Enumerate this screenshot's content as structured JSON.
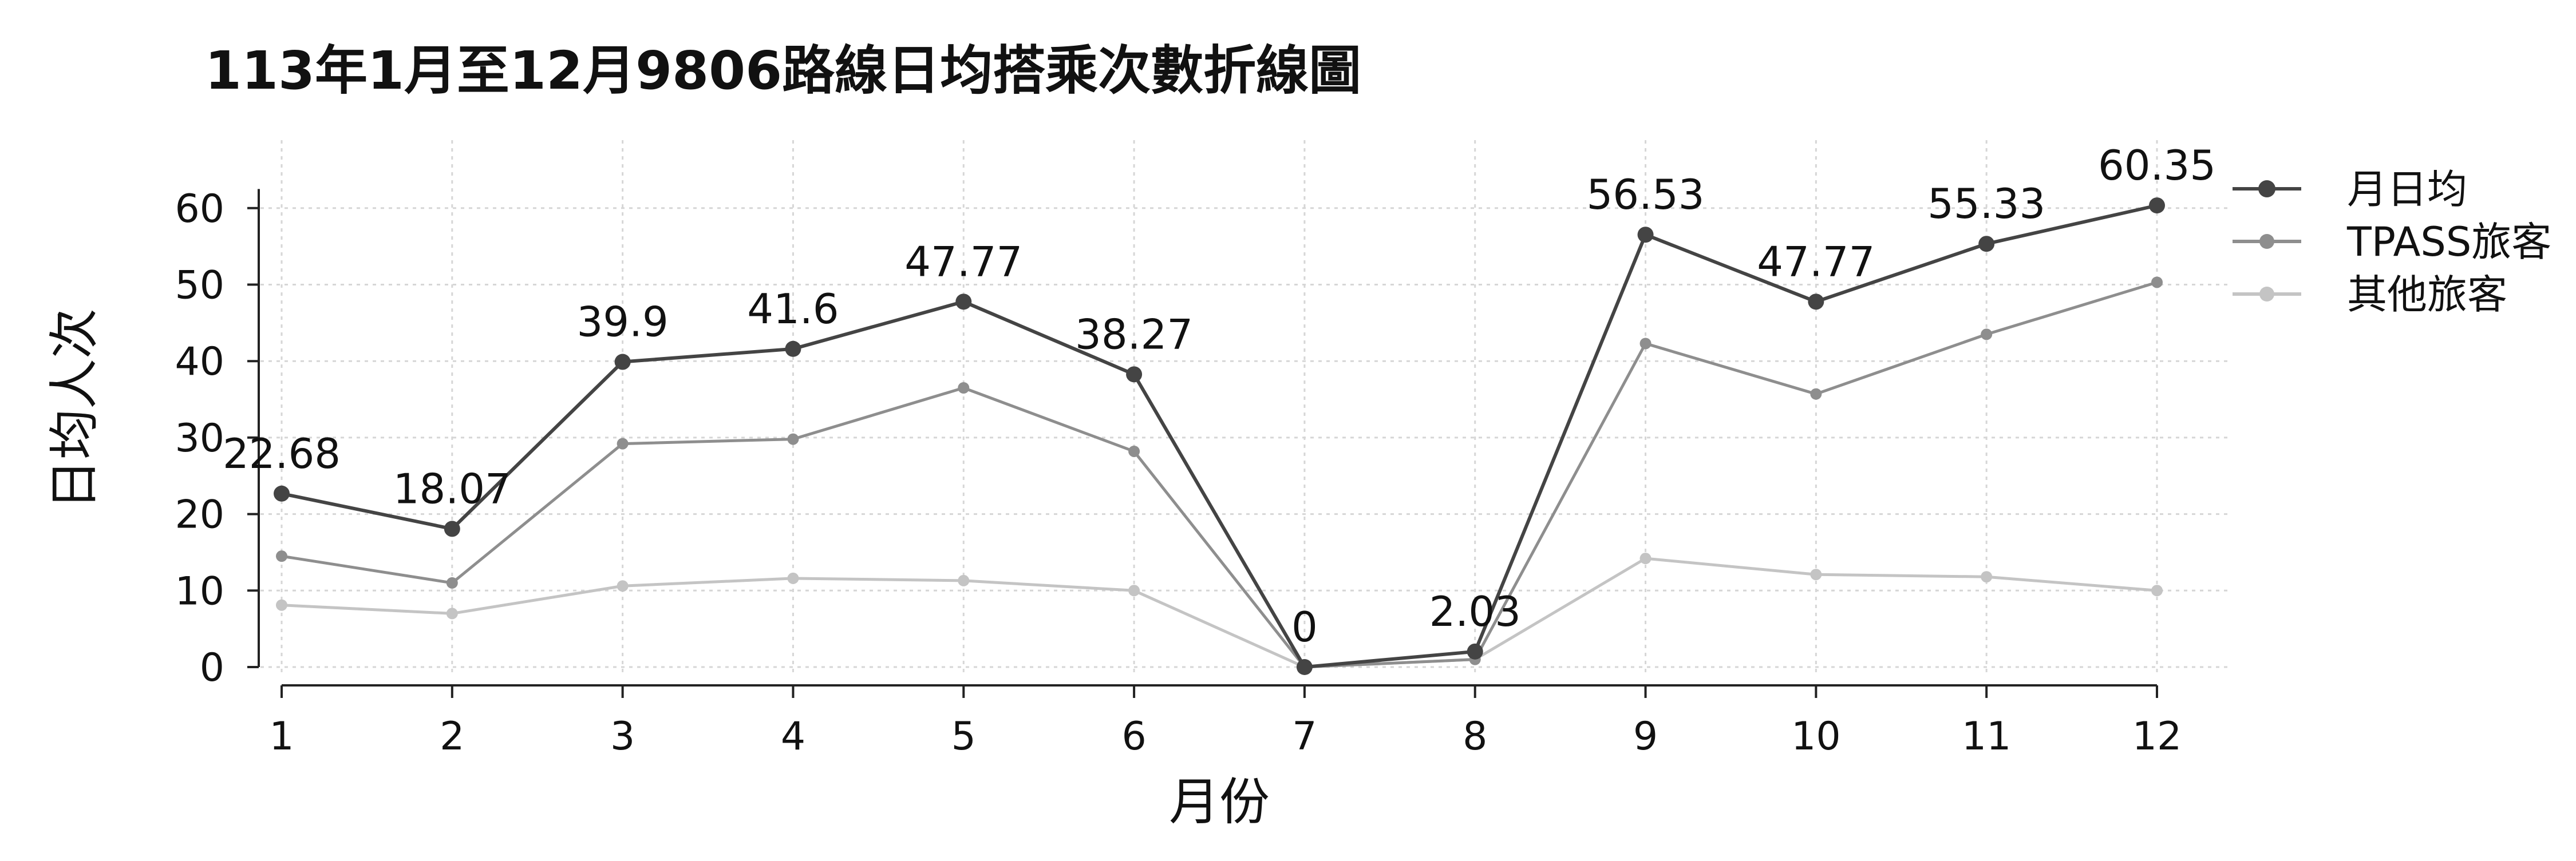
{
  "chart_data": {
    "type": "line",
    "title": "113年1月至12月9806路線日均搭乘次數折線圖",
    "xlabel": "月份",
    "ylabel": "日均人次",
    "categories": [
      "1",
      "2",
      "3",
      "4",
      "5",
      "6",
      "7",
      "8",
      "9",
      "10",
      "11",
      "12"
    ],
    "yticks": [
      "0",
      "10",
      "20",
      "30",
      "40",
      "50",
      "60"
    ],
    "ylim": [
      0,
      62
    ],
    "grid": true,
    "legend_position": "top-right",
    "series": [
      {
        "name": "月日均",
        "color": "#444444",
        "values": [
          22.68,
          18.07,
          39.9,
          41.6,
          47.77,
          38.27,
          0,
          2.03,
          56.53,
          47.77,
          55.33,
          60.35
        ],
        "labels": [
          "22.68",
          "18.07",
          "39.9",
          "41.6",
          "47.77",
          "38.27",
          "0",
          "2.03",
          "56.53",
          "47.77",
          "55.33",
          "60.35"
        ]
      },
      {
        "name": "TPASS旅客",
        "color": "#8e8e8e",
        "values": [
          14.5,
          11.0,
          29.2,
          29.8,
          36.5,
          28.2,
          0,
          1.0,
          42.3,
          35.7,
          43.5,
          50.3
        ]
      },
      {
        "name": "其他旅客",
        "color": "#c4c4c4",
        "values": [
          8.1,
          7.0,
          10.6,
          11.6,
          11.3,
          10.0,
          0,
          1.0,
          14.2,
          12.1,
          11.8,
          10.0
        ]
      }
    ]
  }
}
